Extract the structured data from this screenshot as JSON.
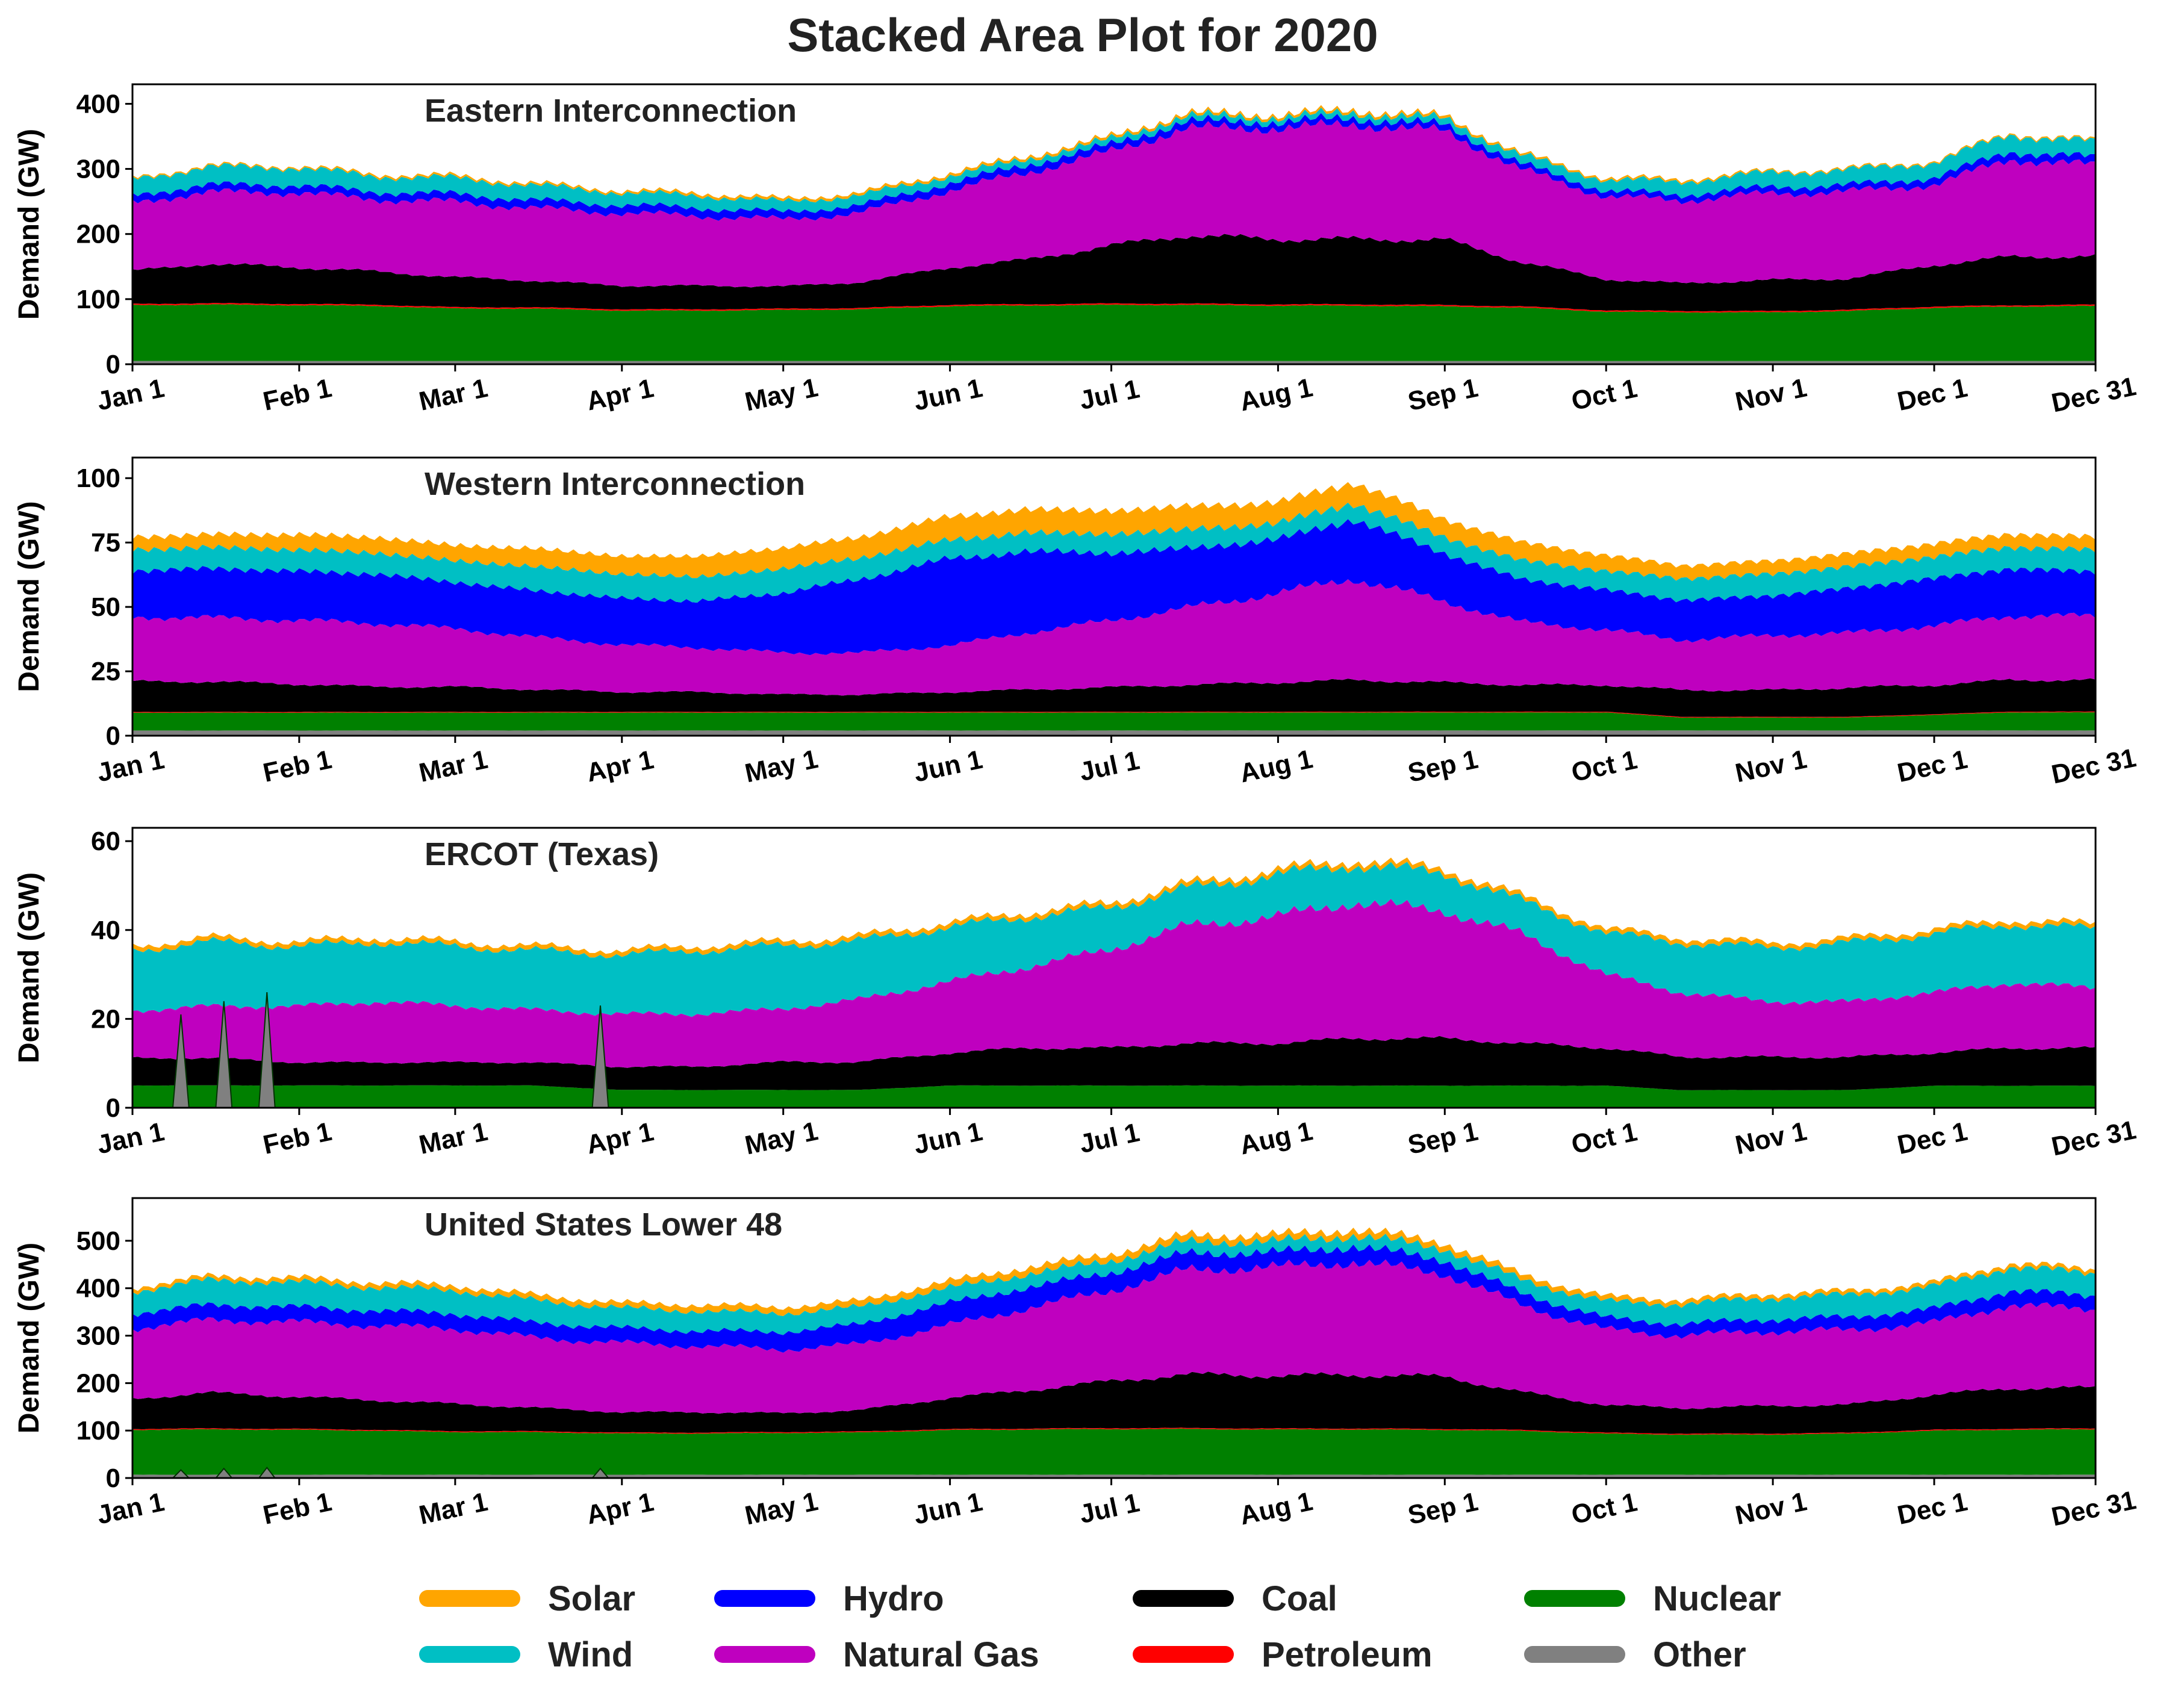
{
  "title": "Stacked Area Plot for 2020",
  "ylabel": "Demand (GW)",
  "xticks": [
    "Jan 1",
    "Feb 1",
    "Mar 1",
    "Apr 1",
    "May 1",
    "Jun 1",
    "Jul 1",
    "Aug 1",
    "Sep 1",
    "Oct 1",
    "Nov 1",
    "Dec 1",
    "Dec 31"
  ],
  "xtick_days": [
    0,
    31,
    60,
    91,
    121,
    152,
    182,
    213,
    244,
    274,
    305,
    335,
    365
  ],
  "colors": {
    "Solar": "#FFA500",
    "Wind": "#00BFC4",
    "Hydro": "#0000FF",
    "Natural Gas": "#BF00BF",
    "Coal": "#000000",
    "Petroleum": "#FF0000",
    "Nuclear": "#008000",
    "Other": "#808080"
  },
  "legend": [
    {
      "name": "Solar"
    },
    {
      "name": "Wind"
    },
    {
      "name": "Hydro"
    },
    {
      "name": "Natural Gas"
    },
    {
      "name": "Coal"
    },
    {
      "name": "Petroleum"
    },
    {
      "name": "Nuclear"
    },
    {
      "name": "Other"
    }
  ],
  "chart_data": [
    {
      "type": "area",
      "title": "Eastern Interconnection",
      "ylabel": "Demand (GW)",
      "ylim": [
        0,
        430
      ],
      "yticks": [
        0,
        100,
        200,
        300,
        400
      ],
      "x": [
        "Jan 1",
        "Jan 15",
        "Feb 1",
        "Feb 15",
        "Mar 1",
        "Mar 15",
        "Apr 1",
        "Apr 15",
        "May 1",
        "May 15",
        "Jun 1",
        "Jun 15",
        "Jul 1",
        "Jul 15",
        "Aug 1",
        "Aug 15",
        "Sep 1",
        "Sep 15",
        "Oct 1",
        "Oct 15",
        "Nov 1",
        "Nov 15",
        "Dec 1",
        "Dec 15",
        "Dec 31"
      ],
      "series": [
        {
          "name": "Other",
          "values": [
            5,
            5,
            5,
            5,
            5,
            5,
            5,
            5,
            5,
            5,
            5,
            5,
            5,
            5,
            5,
            5,
            5,
            5,
            5,
            5,
            5,
            5,
            5,
            5,
            5
          ]
        },
        {
          "name": "Nuclear",
          "values": [
            85,
            86,
            85,
            84,
            80,
            80,
            77,
            77,
            78,
            79,
            84,
            85,
            86,
            86,
            85,
            85,
            84,
            82,
            76,
            75,
            75,
            77,
            82,
            84,
            85
          ]
        },
        {
          "name": "Petroleum",
          "values": [
            2,
            2,
            2,
            2,
            2,
            2,
            2,
            2,
            2,
            2,
            2,
            2,
            2,
            2,
            2,
            2,
            2,
            2,
            2,
            2,
            2,
            2,
            2,
            2,
            2
          ]
        },
        {
          "name": "Coal",
          "values": [
            50,
            60,
            55,
            50,
            45,
            40,
            35,
            35,
            33,
            38,
            55,
            65,
            85,
            100,
            95,
            95,
            95,
            65,
            45,
            40,
            45,
            45,
            60,
            70,
            70
          ]
        },
        {
          "name": "Natural Gas",
          "values": [
            110,
            115,
            120,
            115,
            120,
            115,
            115,
            110,
            105,
            108,
            120,
            135,
            145,
            165,
            170,
            175,
            165,
            140,
            125,
            125,
            130,
            130,
            120,
            145,
            135
          ]
        },
        {
          "name": "Hydro",
          "values": [
            12,
            12,
            12,
            12,
            13,
            13,
            13,
            13,
            12,
            12,
            12,
            12,
            11,
            11,
            10,
            10,
            10,
            9,
            9,
            9,
            10,
            10,
            11,
            12,
            12
          ]
        },
        {
          "name": "Wind",
          "values": [
            25,
            28,
            28,
            25,
            25,
            24,
            20,
            20,
            17,
            16,
            12,
            10,
            9,
            9,
            8,
            9,
            10,
            14,
            18,
            22,
            24,
            25,
            25,
            28,
            25
          ]
        },
        {
          "name": "Solar",
          "values": [
            2,
            2,
            2,
            3,
            3,
            3,
            3,
            4,
            4,
            4,
            4,
            4,
            4,
            4,
            4,
            4,
            4,
            3,
            3,
            3,
            2,
            2,
            2,
            2,
            2
          ]
        }
      ]
    },
    {
      "type": "area",
      "title": "Western Interconnection",
      "ylabel": "Demand (GW)",
      "ylim": [
        0,
        108
      ],
      "yticks": [
        0,
        25,
        50,
        75,
        100
      ],
      "x": [
        "Jan 1",
        "Jan 15",
        "Feb 1",
        "Feb 15",
        "Mar 1",
        "Mar 15",
        "Apr 1",
        "Apr 15",
        "May 1",
        "May 15",
        "Jun 1",
        "Jun 15",
        "Jul 1",
        "Jul 15",
        "Aug 1",
        "Aug 15",
        "Sep 1",
        "Sep 15",
        "Oct 1",
        "Oct 15",
        "Nov 1",
        "Nov 15",
        "Dec 1",
        "Dec 15",
        "Dec 31"
      ],
      "series": [
        {
          "name": "Other",
          "values": [
            2,
            2,
            2,
            2,
            2,
            2,
            2,
            2,
            2,
            2,
            2,
            2,
            2,
            2,
            2,
            2,
            2,
            2,
            2,
            2,
            2,
            2,
            2,
            2,
            2
          ]
        },
        {
          "name": "Nuclear",
          "values": [
            7,
            7,
            7,
            7,
            7,
            7,
            7,
            7,
            7,
            7,
            7,
            7,
            7,
            7,
            7,
            7,
            7,
            7,
            7,
            5,
            5,
            5,
            6,
            7,
            7
          ]
        },
        {
          "name": "Petroleum",
          "values": [
            0.3,
            0.3,
            0.3,
            0.3,
            0.3,
            0.3,
            0.3,
            0.3,
            0.3,
            0.3,
            0.3,
            0.3,
            0.3,
            0.3,
            0.3,
            0.3,
            0.3,
            0.3,
            0.3,
            0.3,
            0.3,
            0.3,
            0.3,
            0.3,
            0.3
          ]
        },
        {
          "name": "Coal",
          "values": [
            12,
            12,
            11,
            10,
            10,
            9,
            8,
            8,
            7,
            7,
            8,
            9,
            10,
            11,
            12,
            13,
            12,
            11,
            11,
            11,
            11,
            12,
            12,
            13,
            13
          ]
        },
        {
          "name": "Natural Gas",
          "values": [
            24,
            24,
            24,
            24,
            22,
            20,
            18,
            17,
            16,
            16,
            18,
            22,
            26,
            30,
            35,
            40,
            32,
            25,
            22,
            20,
            22,
            22,
            24,
            26,
            26
          ]
        },
        {
          "name": "Hydro",
          "values": [
            17,
            18,
            18,
            18,
            17,
            17,
            17,
            17,
            22,
            27,
            32,
            30,
            25,
            22,
            20,
            22,
            18,
            16,
            15,
            15,
            15,
            17,
            18,
            18,
            17
          ]
        },
        {
          "name": "Wind",
          "values": [
            8,
            8,
            8,
            8,
            8,
            9,
            9,
            9,
            9,
            8,
            7,
            7,
            7,
            7,
            6,
            6,
            6,
            7,
            7,
            8,
            8,
            8,
            8,
            8,
            8
          ]
        },
        {
          "name": "Solar",
          "values": [
            5,
            5,
            6,
            6,
            6,
            7,
            7,
            8,
            8,
            8,
            9,
            9,
            9,
            9,
            8,
            8,
            7,
            7,
            6,
            5,
            5,
            5,
            5,
            5,
            5
          ]
        }
      ]
    },
    {
      "type": "area",
      "title": "ERCOT (Texas)",
      "ylabel": "Demand (GW)",
      "ylim": [
        0,
        63
      ],
      "yticks": [
        0,
        20,
        40,
        60
      ],
      "x": [
        "Jan 1",
        "Jan 15",
        "Feb 1",
        "Feb 15",
        "Mar 1",
        "Mar 15",
        "Apr 1",
        "Apr 15",
        "May 1",
        "May 15",
        "Jun 1",
        "Jun 15",
        "Jul 1",
        "Jul 15",
        "Aug 1",
        "Aug 15",
        "Sep 1",
        "Sep 15",
        "Oct 1",
        "Oct 15",
        "Nov 1",
        "Nov 15",
        "Dec 1",
        "Dec 15",
        "Dec 31"
      ],
      "series": [
        {
          "name": "Other",
          "values": [
            0,
            0,
            0,
            0,
            0,
            0,
            0,
            0,
            0,
            0,
            0,
            0,
            0,
            0,
            0,
            0,
            0,
            0,
            0,
            0,
            0,
            0,
            0,
            0,
            0
          ]
        },
        {
          "name": "Nuclear",
          "values": [
            5,
            5,
            5,
            5,
            5,
            5,
            4,
            4,
            4,
            4,
            5,
            5,
            5,
            5,
            5,
            5,
            5,
            5,
            5,
            4,
            4,
            4,
            5,
            5,
            5
          ]
        },
        {
          "name": "Petroleum",
          "values": [
            0,
            0,
            0,
            0,
            0,
            0,
            0,
            0,
            0,
            0,
            0,
            0,
            0,
            0,
            0,
            0,
            0,
            0,
            0,
            0,
            0,
            0,
            0,
            0,
            0
          ]
        },
        {
          "name": "Coal",
          "values": [
            6,
            6,
            5,
            5,
            5,
            5,
            5,
            5,
            6,
            6,
            7,
            8,
            8,
            9,
            9,
            10,
            10,
            9,
            8,
            7,
            7,
            7,
            7,
            8,
            8
          ]
        },
        {
          "name": "Natural Gas",
          "values": [
            11,
            12,
            13,
            14,
            13,
            12,
            12,
            12,
            12,
            14,
            16,
            18,
            22,
            26,
            28,
            30,
            28,
            24,
            16,
            14,
            12,
            12,
            13,
            14,
            13
          ]
        },
        {
          "name": "Wind",
          "values": [
            14,
            15,
            14,
            14,
            14,
            14,
            14,
            15,
            15,
            14,
            13,
            12,
            10,
            9,
            10,
            9,
            9,
            8,
            10,
            12,
            13,
            14,
            14,
            14,
            14
          ]
        },
        {
          "name": "Solar",
          "values": [
            1,
            1,
            1,
            1,
            1,
            1,
            1,
            1,
            1,
            1,
            1,
            1,
            1,
            1,
            1,
            1,
            1,
            1,
            1,
            1,
            1,
            1,
            1,
            1,
            1
          ]
        }
      ],
      "spikes": {
        "name": "Other",
        "days": [
          9,
          17,
          25,
          87
        ],
        "values": [
          21,
          24,
          26,
          23
        ]
      }
    },
    {
      "type": "area",
      "title": "United States Lower 48",
      "ylabel": "Demand (GW)",
      "ylim": [
        0,
        590
      ],
      "yticks": [
        0,
        100,
        200,
        300,
        400,
        500
      ],
      "x": [
        "Jan 1",
        "Jan 15",
        "Feb 1",
        "Feb 15",
        "Mar 1",
        "Mar 15",
        "Apr 1",
        "Apr 15",
        "May 1",
        "May 15",
        "Jun 1",
        "Jun 15",
        "Jul 1",
        "Jul 15",
        "Aug 1",
        "Aug 15",
        "Sep 1",
        "Sep 15",
        "Oct 1",
        "Oct 15",
        "Nov 1",
        "Nov 15",
        "Dec 1",
        "Dec 15",
        "Dec 31"
      ],
      "series": [
        {
          "name": "Other",
          "values": [
            7,
            7,
            7,
            7,
            7,
            7,
            7,
            7,
            7,
            7,
            7,
            7,
            7,
            7,
            7,
            7,
            7,
            7,
            7,
            7,
            7,
            7,
            7,
            7,
            7
          ]
        },
        {
          "name": "Nuclear",
          "values": [
            95,
            96,
            95,
            93,
            90,
            90,
            87,
            87,
            88,
            89,
            94,
            95,
            96,
            96,
            95,
            95,
            94,
            92,
            86,
            84,
            84,
            86,
            92,
            94,
            95
          ]
        },
        {
          "name": "Petroleum",
          "values": [
            2,
            2,
            2,
            2,
            2,
            2,
            2,
            2,
            2,
            2,
            2,
            2,
            2,
            2,
            2,
            2,
            2,
            2,
            2,
            2,
            2,
            2,
            2,
            2,
            2
          ]
        },
        {
          "name": "Coal",
          "values": [
            65,
            78,
            70,
            65,
            60,
            52,
            45,
            45,
            42,
            47,
            70,
            85,
            105,
            120,
            118,
            120,
            117,
            85,
            62,
            57,
            62,
            62,
            78,
            90,
            90
          ]
        },
        {
          "name": "Natural Gas",
          "values": [
            145,
            150,
            155,
            155,
            157,
            147,
            145,
            140,
            135,
            140,
            155,
            175,
            195,
            225,
            235,
            245,
            225,
            190,
            165,
            160,
            165,
            165,
            160,
            185,
            175
          ]
        },
        {
          "name": "Hydro",
          "values": [
            30,
            30,
            30,
            30,
            30,
            30,
            30,
            30,
            35,
            40,
            45,
            42,
            36,
            34,
            30,
            32,
            28,
            25,
            24,
            24,
            25,
            27,
            29,
            30,
            29
          ]
        },
        {
          "name": "Wind",
          "values": [
            45,
            50,
            50,
            47,
            47,
            45,
            40,
            40,
            37,
            35,
            30,
            27,
            24,
            23,
            22,
            22,
            23,
            27,
            33,
            40,
            43,
            45,
            45,
            48,
            45
          ]
        },
        {
          "name": "Solar",
          "values": [
            8,
            8,
            9,
            10,
            10,
            11,
            11,
            13,
            13,
            13,
            14,
            14,
            14,
            14,
            13,
            13,
            12,
            11,
            10,
            9,
            8,
            8,
            8,
            8,
            8
          ]
        }
      ],
      "spikes": {
        "name": "Other",
        "days": [
          9,
          17,
          25,
          87
        ],
        "values": [
          17,
          20,
          22,
          20
        ]
      }
    }
  ]
}
